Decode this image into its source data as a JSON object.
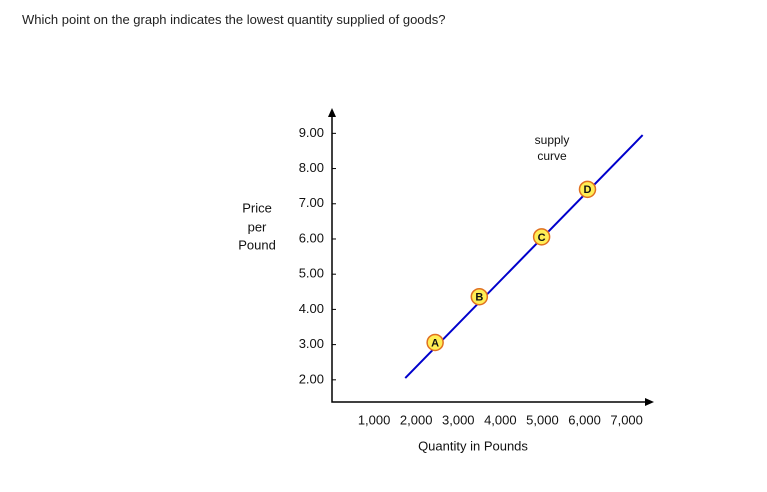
{
  "question": "Which point on the graph indicates the lowest quantity supplied of goods?",
  "chart_data": {
    "type": "line",
    "ylabel": [
      "Price",
      "per",
      "Pound"
    ],
    "xlabel": "Quantity in Pounds",
    "annotation": [
      "supply",
      "curve"
    ],
    "xlim": [
      0,
      7650
    ],
    "ylim": [
      1.37,
      9.72
    ],
    "xticks": [
      {
        "value": 1000,
        "label": "1,000"
      },
      {
        "value": 2000,
        "label": "2,000"
      },
      {
        "value": 3000,
        "label": "3,000"
      },
      {
        "value": 4000,
        "label": "4,000"
      },
      {
        "value": 5000,
        "label": "5,000"
      },
      {
        "value": 6000,
        "label": "6,000"
      },
      {
        "value": 7000,
        "label": "7,000"
      }
    ],
    "yticks": [
      {
        "value": 2,
        "label": "2.00"
      },
      {
        "value": 3,
        "label": "3.00"
      },
      {
        "value": 4,
        "label": "4.00"
      },
      {
        "value": 5,
        "label": "5.00"
      },
      {
        "value": 6,
        "label": "6.00"
      },
      {
        "value": 7,
        "label": "7.00"
      },
      {
        "value": 8,
        "label": "8.00"
      },
      {
        "value": 9,
        "label": "9.00"
      }
    ],
    "line": {
      "color": "#0000cc",
      "x": [
        1740,
        7380
      ],
      "values": [
        2.05,
        8.95
      ]
    },
    "points": {
      "labels": [
        "A",
        "B",
        "C",
        "D"
      ],
      "x": [
        2450,
        3500,
        4980,
        6070
      ],
      "values": [
        3.06,
        4.36,
        6.06,
        7.41
      ],
      "color": "#ffee55",
      "edge": "#e07020"
    }
  }
}
